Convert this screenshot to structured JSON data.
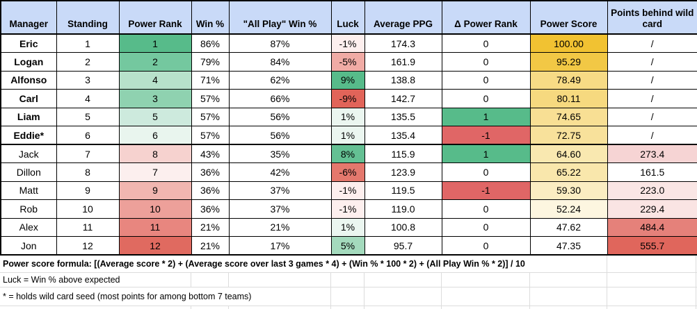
{
  "colors": {
    "header_bg": "#c9daf8",
    "positive_green": "#57bb8a",
    "negative_red": "#e06666",
    "score_gold": "#f1c232",
    "grid_black": "#000000",
    "grid_gray": "#dcdcdc"
  },
  "table": {
    "headers": [
      "Manager",
      "Standing",
      "Power Rank",
      "Win %",
      "\"All Play\" Win %",
      "Luck",
      "Average PPG",
      "Δ Power Rank",
      "Power Score",
      "Points behind wild card"
    ],
    "rows": [
      {
        "cells": [
          {
            "t": "Eric",
            "b": true
          },
          {
            "t": "1"
          },
          {
            "t": "1",
            "bg": "#57bb8a"
          },
          {
            "t": "86%"
          },
          {
            "t": "87%"
          },
          {
            "t": "-1%",
            "bg": "#fdefee"
          },
          {
            "t": "174.3"
          },
          {
            "t": "0"
          },
          {
            "t": "100.00",
            "bg": "#f1c232"
          },
          {
            "t": "/"
          }
        ]
      },
      {
        "cells": [
          {
            "t": "Logan",
            "b": true
          },
          {
            "t": "2"
          },
          {
            "t": "2",
            "bg": "#74c89f"
          },
          {
            "t": "79%"
          },
          {
            "t": "84%"
          },
          {
            "t": "-5%",
            "bg": "#f0aba5"
          },
          {
            "t": "161.9"
          },
          {
            "t": "0"
          },
          {
            "t": "95.29",
            "bg": "#f2c845"
          },
          {
            "t": "/"
          }
        ]
      },
      {
        "cells": [
          {
            "t": "Alfonso",
            "b": true
          },
          {
            "t": "3"
          },
          {
            "t": "4",
            "bg": "#b7e1cb"
          },
          {
            "t": "71%"
          },
          {
            "t": "62%"
          },
          {
            "t": "9%",
            "bg": "#57bb8a"
          },
          {
            "t": "138.8"
          },
          {
            "t": "0"
          },
          {
            "t": "78.49",
            "bg": "#f7db85"
          },
          {
            "t": "/"
          }
        ]
      },
      {
        "cells": [
          {
            "t": "Carl",
            "b": true
          },
          {
            "t": "4"
          },
          {
            "t": "3",
            "bg": "#8fd2b0"
          },
          {
            "t": "57%"
          },
          {
            "t": "66%"
          },
          {
            "t": "-9%",
            "bg": "#e16459"
          },
          {
            "t": "142.7"
          },
          {
            "t": "0"
          },
          {
            "t": "80.11",
            "bg": "#f6d97f"
          },
          {
            "t": "/"
          }
        ]
      },
      {
        "cells": [
          {
            "t": "Liam",
            "b": true
          },
          {
            "t": "5"
          },
          {
            "t": "5",
            "bg": "#cdeadd"
          },
          {
            "t": "57%"
          },
          {
            "t": "56%"
          },
          {
            "t": "1%",
            "bg": "#ebf6f0"
          },
          {
            "t": "135.5"
          },
          {
            "t": "1",
            "bg": "#57bb8a"
          },
          {
            "t": "74.65",
            "bg": "#f8df94"
          },
          {
            "t": "/"
          }
        ]
      },
      {
        "cells": [
          {
            "t": "Eddie*",
            "b": true
          },
          {
            "t": "6"
          },
          {
            "t": "6",
            "bg": "#e9f5ee"
          },
          {
            "t": "57%"
          },
          {
            "t": "56%"
          },
          {
            "t": "1%",
            "bg": "#ebf6f0"
          },
          {
            "t": "135.4"
          },
          {
            "t": "-1",
            "bg": "#e06666"
          },
          {
            "t": "72.75",
            "bg": "#f8e19b"
          },
          {
            "t": "/"
          }
        ]
      },
      {
        "cells": [
          {
            "t": "Jack"
          },
          {
            "t": "7"
          },
          {
            "t": "8",
            "bg": "#f6d2cf"
          },
          {
            "t": "43%"
          },
          {
            "t": "35%"
          },
          {
            "t": "8%",
            "bg": "#64c093"
          },
          {
            "t": "115.9"
          },
          {
            "t": "1",
            "bg": "#57bb8a"
          },
          {
            "t": "64.60",
            "bg": "#f9e8b0"
          },
          {
            "t": "273.4",
            "bg": "#f6d4d4"
          }
        ]
      },
      {
        "cells": [
          {
            "t": "Dillon"
          },
          {
            "t": "8"
          },
          {
            "t": "7",
            "bg": "#fcefee"
          },
          {
            "t": "36%"
          },
          {
            "t": "42%"
          },
          {
            "t": "-6%",
            "bg": "#e4786d"
          },
          {
            "t": "123.9"
          },
          {
            "t": "0"
          },
          {
            "t": "65.22",
            "bg": "#f9e7ac"
          },
          {
            "t": "161.5"
          }
        ]
      },
      {
        "cells": [
          {
            "t": "Matt"
          },
          {
            "t": "9"
          },
          {
            "t": "9",
            "bg": "#f1b6b0"
          },
          {
            "t": "36%"
          },
          {
            "t": "37%"
          },
          {
            "t": "-1%",
            "bg": "#fdefee"
          },
          {
            "t": "119.5"
          },
          {
            "t": "-1",
            "bg": "#e06666"
          },
          {
            "t": "59.30",
            "bg": "#fbedc2"
          },
          {
            "t": "223.0",
            "bg": "#fae6e5"
          }
        ]
      },
      {
        "cells": [
          {
            "t": "Rob"
          },
          {
            "t": "10"
          },
          {
            "t": "10",
            "bg": "#eda09a"
          },
          {
            "t": "36%"
          },
          {
            "t": "37%"
          },
          {
            "t": "-1%",
            "bg": "#fdefee"
          },
          {
            "t": "119.0"
          },
          {
            "t": "0"
          },
          {
            "t": "52.24",
            "bg": "#fdf6e0"
          },
          {
            "t": "229.4",
            "bg": "#fae4e3"
          }
        ]
      },
      {
        "cells": [
          {
            "t": "Alex"
          },
          {
            "t": "11"
          },
          {
            "t": "11",
            "bg": "#e8867f"
          },
          {
            "t": "21%"
          },
          {
            "t": "21%"
          },
          {
            "t": "1%",
            "bg": "#ebf6f0"
          },
          {
            "t": "100.8"
          },
          {
            "t": "0"
          },
          {
            "t": "47.62"
          },
          {
            "t": "484.4",
            "bg": "#e5817a"
          }
        ]
      },
      {
        "cells": [
          {
            "t": "Jon"
          },
          {
            "t": "12"
          },
          {
            "t": "12",
            "bg": "#e06a60"
          },
          {
            "t": "21%"
          },
          {
            "t": "17%"
          },
          {
            "t": "5%",
            "bg": "#a4dabd"
          },
          {
            "t": "95.7"
          },
          {
            "t": "0"
          },
          {
            "t": "47.35"
          },
          {
            "t": "555.7",
            "bg": "#e0665c"
          }
        ]
      }
    ]
  },
  "notes": {
    "formula": "Power score formula: [(Average score * 2) + (Average score over last 3 games * 4) + (Win % * 100 * 2) + (All Play Win % * 2)] / 10",
    "luck": "Luck = Win % above expected",
    "wildcard": "* = holds wild card seed (most points for among bottom 7 teams)"
  }
}
